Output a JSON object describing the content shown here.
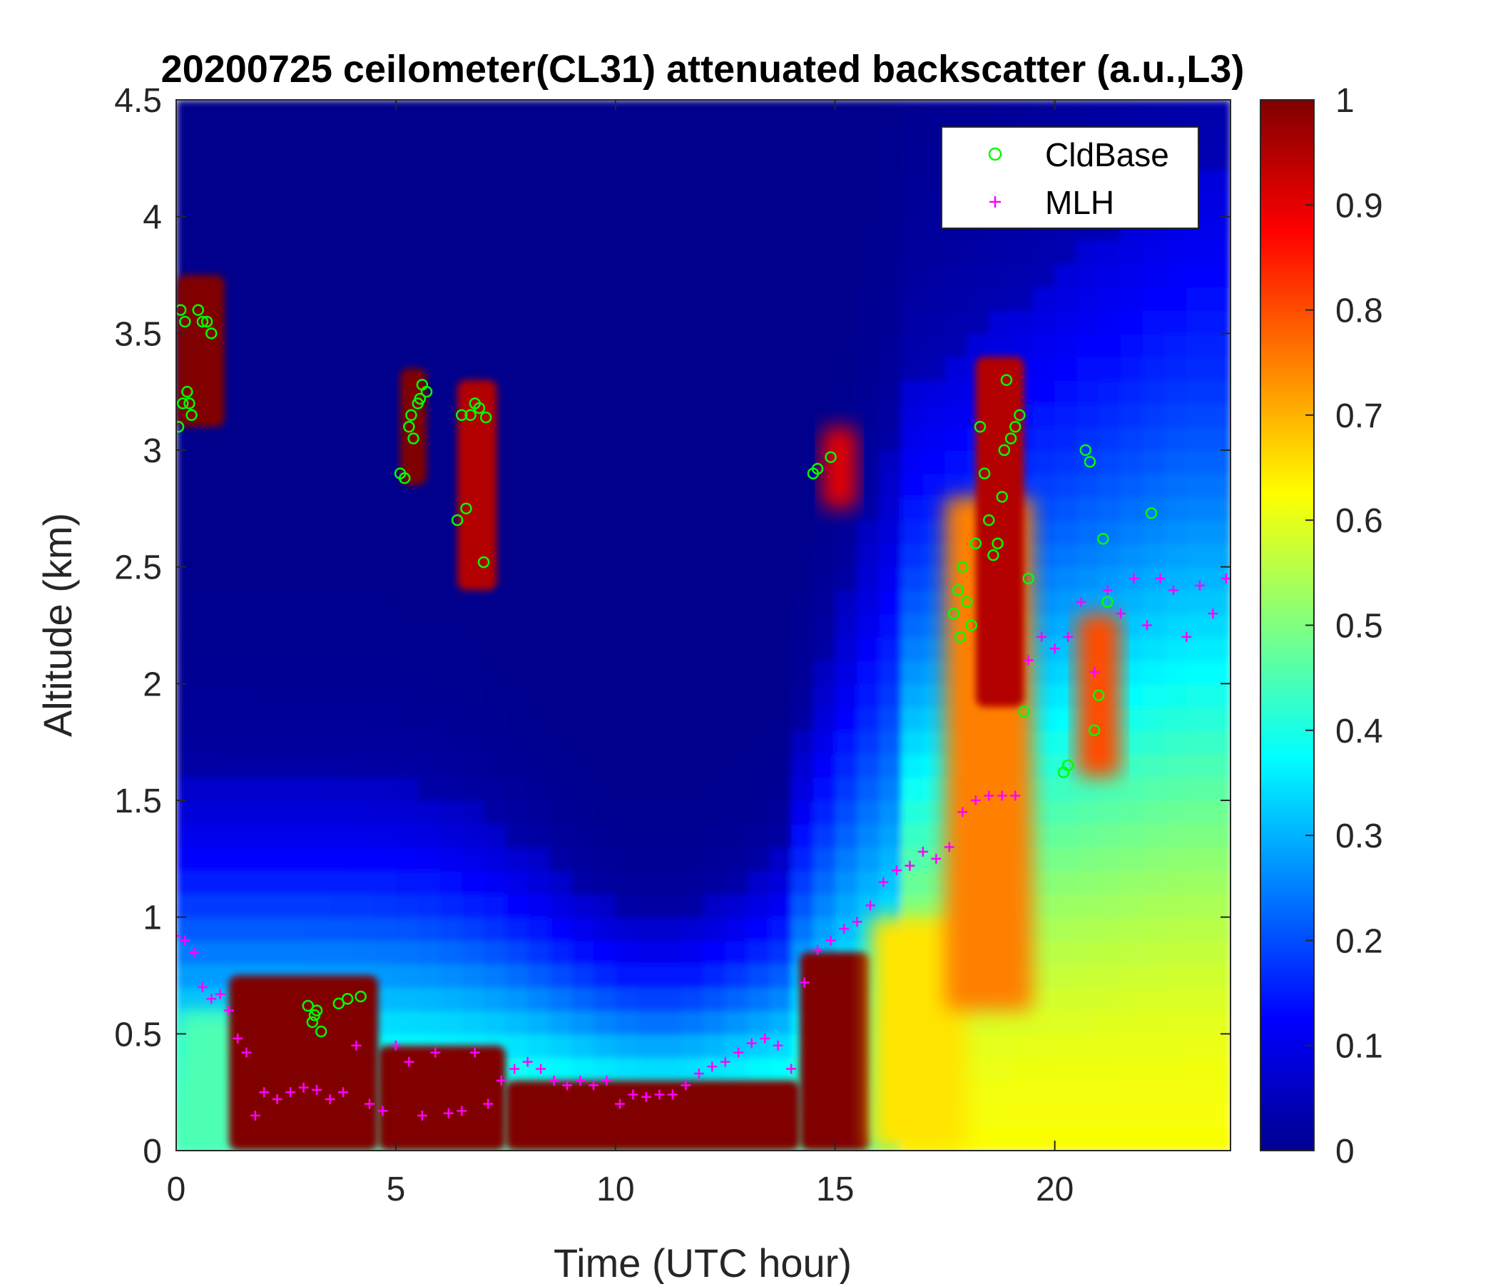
{
  "chart_data": {
    "type": "heatmap",
    "title": "20200725 ceilometer(CL31) attenuated backscatter (a.u.,L3)",
    "xlabel": "Time (UTC hour)",
    "ylabel": "Altitude (km)",
    "xlim": [
      0,
      24
    ],
    "ylim": [
      0,
      4.5
    ],
    "xticks": [
      "0",
      "5",
      "10",
      "15",
      "20"
    ],
    "xtick_values": [
      0,
      5,
      10,
      15,
      20
    ],
    "yticks": [
      "0",
      "0.5",
      "1",
      "1.5",
      "2",
      "2.5",
      "3",
      "3.5",
      "4",
      "4.5"
    ],
    "ytick_values": [
      0,
      0.5,
      1,
      1.5,
      2,
      2.5,
      3,
      3.5,
      4,
      4.5
    ],
    "colorbar": {
      "colormap": "jet",
      "limits": [
        0,
        1
      ],
      "ticks": [
        "0",
        "0.1",
        "0.2",
        "0.3",
        "0.4",
        "0.5",
        "0.6",
        "0.7",
        "0.8",
        "0.9",
        "1"
      ],
      "tick_values": [
        0,
        0.1,
        0.2,
        0.3,
        0.4,
        0.5,
        0.6,
        0.7,
        0.8,
        0.9,
        1
      ]
    },
    "legend": {
      "placement": "top-right",
      "entries": [
        {
          "label": "CldBase",
          "marker": "circle",
          "color": "#00ff00"
        },
        {
          "label": "MLH",
          "marker": "plus",
          "color": "#ff00ff"
        }
      ]
    },
    "features": [
      {
        "t0": 0,
        "t1": 1.5,
        "z0": 0,
        "z1": 0.6,
        "v": 0.45
      },
      {
        "t0": 1.2,
        "t1": 4.6,
        "z0": 0,
        "z1": 0.75,
        "v": 1.0
      },
      {
        "t0": 4.6,
        "t1": 7.5,
        "z0": 0,
        "z1": 0.45,
        "v": 1.0
      },
      {
        "t0": 7.5,
        "t1": 14.2,
        "z0": 0,
        "z1": 0.3,
        "v": 1.0
      },
      {
        "t0": 14.2,
        "t1": 15.8,
        "z0": 0,
        "z1": 0.85,
        "v": 1.0
      },
      {
        "t0": 15.8,
        "t1": 18,
        "z0": 0,
        "z1": 1.0,
        "v": 0.65
      },
      {
        "t0": 17.5,
        "t1": 19.5,
        "z0": 0.6,
        "z1": 2.8,
        "v": 0.75
      },
      {
        "t0": 20.5,
        "t1": 21.5,
        "z0": 1.6,
        "z1": 2.3,
        "v": 0.8
      },
      {
        "t0": 0,
        "t1": 1.1,
        "z0": 3.1,
        "z1": 3.75,
        "v": 1.0
      },
      {
        "t0": 5.1,
        "t1": 5.7,
        "z0": 2.85,
        "z1": 3.35,
        "v": 1.0
      },
      {
        "t0": 6.4,
        "t1": 7.3,
        "z0": 2.4,
        "z1": 3.3,
        "v": 0.95
      },
      {
        "t0": 14.7,
        "t1": 15.5,
        "z0": 2.75,
        "z1": 3.1,
        "v": 0.9
      },
      {
        "t0": 18.2,
        "t1": 19.3,
        "z0": 1.9,
        "z1": 3.4,
        "v": 0.95
      }
    ],
    "series": [
      {
        "name": "CldBase",
        "x": [
          0.05,
          0.1,
          0.15,
          0.2,
          0.25,
          0.3,
          0.35,
          0.5,
          0.6,
          0.7,
          0.8,
          3.0,
          3.1,
          3.15,
          3.2,
          3.3,
          3.7,
          3.9,
          4.2,
          5.1,
          5.2,
          5.3,
          5.35,
          5.4,
          5.5,
          5.55,
          5.6,
          5.7,
          6.4,
          6.5,
          6.6,
          6.7,
          6.8,
          6.9,
          7.0,
          7.05,
          14.5,
          14.6,
          14.9,
          17.7,
          17.8,
          17.85,
          17.9,
          18.0,
          18.1,
          18.2,
          18.3,
          18.4,
          18.5,
          18.6,
          18.7,
          18.8,
          18.85,
          18.9,
          19.0,
          19.1,
          19.2,
          19.3,
          19.4,
          20.2,
          20.3,
          20.7,
          20.8,
          20.9,
          21.0,
          21.1,
          21.2,
          22.2
        ],
        "y": [
          3.1,
          3.6,
          3.2,
          3.55,
          3.25,
          3.2,
          3.15,
          3.6,
          3.55,
          3.55,
          3.5,
          0.62,
          0.55,
          0.58,
          0.6,
          0.51,
          0.63,
          0.65,
          0.66,
          2.9,
          2.88,
          3.1,
          3.15,
          3.05,
          3.2,
          3.22,
          3.28,
          3.25,
          2.7,
          3.15,
          2.75,
          3.15,
          3.2,
          3.18,
          2.52,
          3.14,
          2.9,
          2.92,
          2.97,
          2.3,
          2.4,
          2.2,
          2.5,
          2.35,
          2.25,
          2.6,
          3.1,
          2.9,
          2.7,
          2.55,
          2.6,
          2.8,
          3.0,
          3.3,
          3.05,
          3.1,
          3.15,
          1.88,
          2.45,
          1.62,
          1.65,
          3.0,
          2.95,
          1.8,
          1.95,
          2.62,
          2.35,
          2.73
        ]
      },
      {
        "name": "MLH",
        "x": [
          0,
          0.2,
          0.4,
          0.6,
          0.8,
          1.0,
          1.2,
          1.4,
          1.6,
          1.8,
          2.0,
          2.3,
          2.6,
          2.9,
          3.2,
          3.5,
          3.8,
          4.1,
          4.4,
          4.7,
          5.0,
          5.3,
          5.6,
          5.9,
          6.2,
          6.5,
          6.8,
          7.1,
          7.4,
          7.7,
          8.0,
          8.3,
          8.6,
          8.9,
          9.2,
          9.5,
          9.8,
          10.1,
          10.4,
          10.7,
          11.0,
          11.3,
          11.6,
          11.9,
          12.2,
          12.5,
          12.8,
          13.1,
          13.4,
          13.7,
          14.0,
          14.3,
          14.6,
          14.9,
          15.2,
          15.5,
          15.8,
          16.1,
          16.4,
          16.7,
          17.0,
          17.3,
          17.6,
          17.9,
          18.2,
          18.5,
          18.8,
          19.1,
          19.4,
          19.7,
          20.0,
          20.3,
          20.6,
          20.9,
          21.2,
          21.5,
          21.8,
          22.1,
          22.4,
          22.7,
          23.0,
          23.3,
          23.6,
          23.9
        ],
        "y": [
          0.92,
          0.9,
          0.85,
          0.7,
          0.65,
          0.67,
          0.6,
          0.48,
          0.42,
          0.15,
          0.25,
          0.22,
          0.25,
          0.27,
          0.26,
          0.22,
          0.25,
          0.45,
          0.2,
          0.17,
          0.45,
          0.38,
          0.15,
          0.42,
          0.16,
          0.17,
          0.42,
          0.2,
          0.3,
          0.35,
          0.38,
          0.35,
          0.3,
          0.28,
          0.3,
          0.28,
          0.3,
          0.2,
          0.24,
          0.23,
          0.24,
          0.24,
          0.28,
          0.33,
          0.36,
          0.38,
          0.42,
          0.46,
          0.48,
          0.45,
          0.35,
          0.72,
          0.86,
          0.9,
          0.95,
          0.98,
          1.05,
          1.15,
          1.2,
          1.22,
          1.28,
          1.25,
          1.3,
          1.45,
          1.5,
          1.52,
          1.52,
          1.52,
          2.1,
          2.2,
          2.15,
          2.2,
          2.35,
          2.05,
          2.4,
          2.3,
          2.45,
          2.25,
          2.45,
          2.4,
          2.2,
          2.42,
          2.3,
          2.45
        ]
      }
    ]
  }
}
